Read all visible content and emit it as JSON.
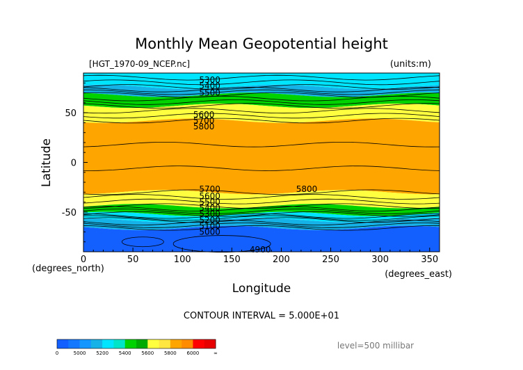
{
  "chart_data": {
    "type": "heatmap",
    "title": "Monthly Mean Geopotential height",
    "subtitle_left": "[HGT_1970-09_NCEP.nc]",
    "subtitle_right": "(units:m)",
    "xlabel": "Longitude",
    "ylabel": "Latitude",
    "x_unit_label": "(degrees_east)",
    "y_unit_label": "(degrees_north)",
    "xlim": [
      0,
      360
    ],
    "ylim": [
      -90,
      90
    ],
    "x_ticks": [
      0,
      50,
      100,
      150,
      200,
      250,
      300,
      350
    ],
    "y_ticks": [
      50,
      0,
      -50
    ],
    "contour_interval_text": "CONTOUR INTERVAL = 5.000E+01",
    "level_text": "level=500 millibar",
    "bands": [
      {
        "lat_top": 90,
        "lat_bottom": 76,
        "color": "#00e5ff"
      },
      {
        "lat_top": 76,
        "lat_bottom": 68,
        "color": "#14b2e6"
      },
      {
        "lat_top": 68,
        "lat_bottom": 57,
        "color": "#00d200"
      },
      {
        "lat_top": 57,
        "lat_bottom": 42,
        "color": "#ffff40"
      },
      {
        "lat_top": 42,
        "lat_bottom": -30,
        "color": "#ffa500"
      },
      {
        "lat_top": -30,
        "lat_bottom": -44,
        "color": "#ffff40"
      },
      {
        "lat_top": -44,
        "lat_bottom": -52,
        "color": "#00d200"
      },
      {
        "lat_top": -52,
        "lat_bottom": -58,
        "color": "#00e5ff"
      },
      {
        "lat_top": -58,
        "lat_bottom": -66,
        "color": "#14b2e6"
      },
      {
        "lat_top": -66,
        "lat_bottom": -90,
        "color": "#1460ff"
      }
    ],
    "contour_labels": [
      {
        "text": "5300",
        "lon": 117,
        "lat": 83
      },
      {
        "text": "5400",
        "lon": 117,
        "lat": 77
      },
      {
        "text": "5500",
        "lon": 117,
        "lat": 70
      },
      {
        "text": "5600",
        "lon": 111,
        "lat": 48
      },
      {
        "text": "5700",
        "lon": 111,
        "lat": 42
      },
      {
        "text": "5800",
        "lon": 111,
        "lat": 36
      },
      {
        "text": "5700",
        "lon": 117,
        "lat": -27
      },
      {
        "text": "5800",
        "lon": 215,
        "lat": -27
      },
      {
        "text": "5600",
        "lon": 117,
        "lat": -34
      },
      {
        "text": "5500",
        "lon": 117,
        "lat": -40
      },
      {
        "text": "5400",
        "lon": 117,
        "lat": -46
      },
      {
        "text": "5300",
        "lon": 117,
        "lat": -52
      },
      {
        "text": "5200",
        "lon": 117,
        "lat": -58
      },
      {
        "text": "5100",
        "lon": 117,
        "lat": -64
      },
      {
        "text": "5000",
        "lon": 117,
        "lat": -70
      },
      {
        "text": "4900",
        "lon": 168,
        "lat": -88
      }
    ],
    "colorbar": {
      "colors": [
        "#1460ff",
        "#1478ff",
        "#1496ff",
        "#14b2e6",
        "#00e5ff",
        "#00e5c8",
        "#00d200",
        "#00aa00",
        "#ffff40",
        "#ffe640",
        "#ffa500",
        "#ff8c00",
        "#ff0000",
        "#e60000"
      ],
      "labels": [
        "0",
        "5000",
        "5200",
        "5400",
        "5600",
        "5800",
        "6000",
        "∞"
      ]
    }
  }
}
